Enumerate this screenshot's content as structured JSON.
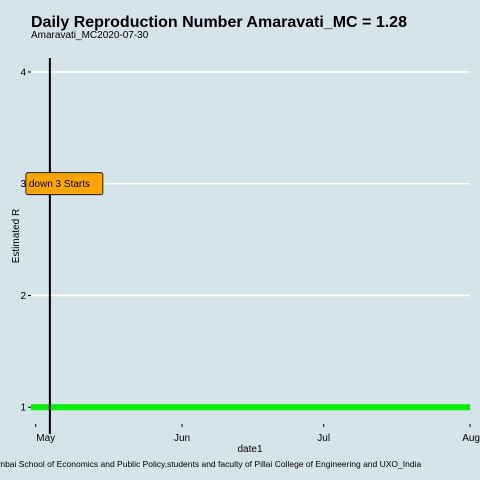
{
  "chart_data": {
    "type": "line",
    "title": "Daily Reproduction Number Amaravati_MC = 1.28",
    "subtitle": "Amaravati_MC2020-07-30",
    "xlabel": "date1",
    "ylabel": "Estimated R",
    "caption": "mbai School of Economics and Public Policy,students and faculty of Pillai College of Engineering and UXO_India",
    "x_ticks": [
      "May",
      "Jun",
      "Jul",
      "Aug"
    ],
    "x_tick_dates": [
      "2020-05-01",
      "2020-06-01",
      "2020-07-01",
      "2020-08-01"
    ],
    "x_range": [
      "2020-04-30",
      "2020-08-01"
    ],
    "y_ticks": [
      1,
      2,
      3,
      4
    ],
    "ylim": [
      0.85,
      4.25
    ],
    "grid": "horizontal",
    "series": [
      {
        "color": "#00ee00",
        "x": [
          "2020-04-30",
          "2020-08-01"
        ],
        "y": [
          1,
          1
        ]
      }
    ],
    "vline": {
      "date": "2020-05-04",
      "color": "#000000"
    },
    "annotation": {
      "label": "down 3 Starts",
      "date": "2020-05-04",
      "y": 3,
      "fill": "#ffa500"
    }
  }
}
